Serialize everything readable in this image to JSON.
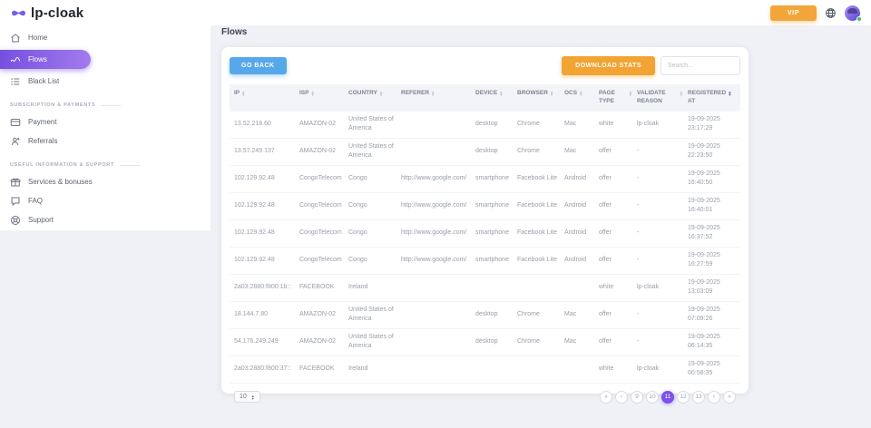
{
  "brand": {
    "name": "lp-cloak",
    "logo_icon": "mask-icon"
  },
  "topbar": {
    "vip_label": "VIP",
    "icons": {
      "language": "globe-icon",
      "user": "avatar",
      "status": "online-dot"
    }
  },
  "sidebar": {
    "main_items": [
      {
        "label": "Home",
        "icon": "home-icon",
        "active": false
      },
      {
        "label": "Flows",
        "icon": "flows-icon",
        "active": true
      },
      {
        "label": "Black List",
        "icon": "list-icon",
        "active": false
      }
    ],
    "sections": [
      {
        "title": "SUBSCRIPTION & PAYMENTS",
        "items": [
          {
            "label": "Payment",
            "icon": "credit-card-icon"
          },
          {
            "label": "Referrals",
            "icon": "user-plus-icon"
          }
        ]
      },
      {
        "title": "USEFUL INFORMATION & SUPPORT",
        "items": [
          {
            "label": "Services & bonuses",
            "icon": "gift-icon"
          },
          {
            "label": "FAQ",
            "icon": "chat-icon"
          },
          {
            "label": "Support",
            "icon": "lifebuoy-icon"
          }
        ]
      }
    ]
  },
  "page": {
    "title": "Flows"
  },
  "toolbar": {
    "go_back_label": "GO BACK",
    "download_stats_label": "DOWNLOAD STATS",
    "search_placeholder": "Search..."
  },
  "table": {
    "columns": [
      {
        "key": "ip",
        "label": "IP"
      },
      {
        "key": "isp",
        "label": "ISP"
      },
      {
        "key": "country",
        "label": "COUNTRY"
      },
      {
        "key": "referer",
        "label": "REFERER"
      },
      {
        "key": "device",
        "label": "DEVICE"
      },
      {
        "key": "browser",
        "label": "BROWSER"
      },
      {
        "key": "ocs",
        "label": "OCS"
      },
      {
        "key": "page_type",
        "label": "PAGE TYPE"
      },
      {
        "key": "validate_reason",
        "label": "VALIDATE REASON"
      },
      {
        "key": "registered_at",
        "label": "REGISTERED AT",
        "sorted": "desc"
      }
    ],
    "rows": [
      {
        "ip": "13.52.218.60",
        "isp": "AMAZON-02",
        "country": "United States of America",
        "referer": "",
        "device": "desktop",
        "browser": "Chrome",
        "ocs": "Mac",
        "page_type": "white",
        "validate_reason": "lp-cloak",
        "registered_at": "19-09-2025\n23:17:29"
      },
      {
        "ip": "13.57.249.137",
        "isp": "AMAZON-02",
        "country": "United States of America",
        "referer": "",
        "device": "desktop",
        "browser": "Chrome",
        "ocs": "Mac",
        "page_type": "offer",
        "validate_reason": "-",
        "registered_at": "19-09-2025\n22:23:50"
      },
      {
        "ip": "102.129.92.48",
        "isp": "CongoTelecom",
        "country": "Congo",
        "referer": "http://www.google.com/",
        "device": "smartphone",
        "browser": "Facebook Lite",
        "ocs": "Android",
        "page_type": "offer",
        "validate_reason": "-",
        "registered_at": "19-09-2025\n16:40:50"
      },
      {
        "ip": "102.129.92.48",
        "isp": "CongoTelecom",
        "country": "Congo",
        "referer": "http://www.google.com/",
        "device": "smartphone",
        "browser": "Facebook Lite",
        "ocs": "Android",
        "page_type": "offer",
        "validate_reason": "-",
        "registered_at": "19-09-2025\n16:40:01"
      },
      {
        "ip": "102.129.92.48",
        "isp": "CongoTelecom",
        "country": "Congo",
        "referer": "http://www.google.com/",
        "device": "smartphone",
        "browser": "Facebook Lite",
        "ocs": "Android",
        "page_type": "offer",
        "validate_reason": "-",
        "registered_at": "19-09-2025\n16:37:52"
      },
      {
        "ip": "102.129.92.48",
        "isp": "CongoTelecom",
        "country": "Congo",
        "referer": "http://www.google.com/",
        "device": "smartphone",
        "browser": "Facebook Lite",
        "ocs": "Android",
        "page_type": "offer",
        "validate_reason": "-",
        "registered_at": "19-09-2025\n16:27:59"
      },
      {
        "ip": "2a03:2880:f800:1b::",
        "isp": "FACEBOOK",
        "country": "Ireland",
        "referer": "",
        "device": "",
        "browser": "",
        "ocs": "",
        "page_type": "white",
        "validate_reason": "lp-cloak",
        "registered_at": "19-09-2025\n13:03:09"
      },
      {
        "ip": "18.144.7.80",
        "isp": "AMAZON-02",
        "country": "United States of America",
        "referer": "",
        "device": "desktop",
        "browser": "Chrome",
        "ocs": "Mac",
        "page_type": "offer",
        "validate_reason": "-",
        "registered_at": "19-09-2025\n07:09:26"
      },
      {
        "ip": "54.176.249.249",
        "isp": "AMAZON-02",
        "country": "United States of America",
        "referer": "",
        "device": "desktop",
        "browser": "Chrome",
        "ocs": "Mac",
        "page_type": "offer",
        "validate_reason": "-",
        "registered_at": "19-09-2025\n06:14:35"
      },
      {
        "ip": "2a03:2880:f800:37::",
        "isp": "FACEBOOK",
        "country": "Ireland",
        "referer": "",
        "device": "",
        "browser": "",
        "ocs": "",
        "page_type": "white",
        "validate_reason": "lp-cloak",
        "registered_at": "19-09-2025\n00:58:35"
      }
    ]
  },
  "pagination": {
    "page_size": "10",
    "pages": [
      "9",
      "10",
      "11",
      "12",
      "13"
    ],
    "active_page": "11",
    "controls": {
      "first": "«",
      "prev": "‹",
      "next": "›",
      "last": "»"
    }
  },
  "colors": {
    "accent_purple": "#7a53e8",
    "button_blue": "#57a8ea",
    "button_orange": "#f1a433",
    "online_green": "#3ec34f"
  }
}
